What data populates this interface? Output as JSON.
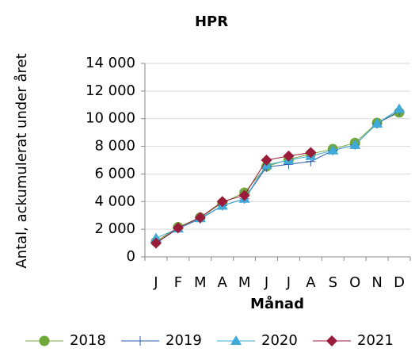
{
  "chart_data": {
    "type": "line",
    "title": "HPR",
    "xlabel": "Månad",
    "ylabel": "Antal, ackumulerat under året",
    "categories": [
      "J",
      "F",
      "M",
      "A",
      "M",
      "J",
      "J",
      "A",
      "S",
      "O",
      "N",
      "D"
    ],
    "series": [
      {
        "name": "2018",
        "color": "#70a83a",
        "marker": "circle",
        "values": [
          1100,
          2150,
          2850,
          3900,
          4650,
          6550,
          7050,
          7450,
          7800,
          8250,
          9700,
          10450
        ]
      },
      {
        "name": "2019",
        "color": "#2a5aa8",
        "marker": "plus",
        "values": [
          1000,
          2050,
          2750,
          3700,
          4200,
          6500,
          6700,
          6900,
          7700,
          8100,
          9650,
          10550
        ]
      },
      {
        "name": "2020",
        "color": "#3fa9d8",
        "marker": "triangle",
        "values": [
          1350,
          2050,
          2800,
          3700,
          4200,
          6650,
          7000,
          7300,
          7700,
          8100,
          9650,
          10700
        ]
      },
      {
        "name": "2021",
        "color": "#9b1b3b",
        "marker": "diamond",
        "values": [
          1000,
          2100,
          2850,
          4000,
          4450,
          7000,
          7300,
          7550,
          null,
          null,
          null,
          null
        ]
      }
    ],
    "ylim": [
      0,
      14000
    ],
    "yticks": [
      0,
      {
        "value": 2000,
        "label": "2 000"
      },
      {
        "value": 4000,
        "label": "4 000"
      },
      {
        "value": 6000,
        "label": "6 000"
      },
      {
        "value": 8000,
        "label": "8 000"
      },
      {
        "value": 10000,
        "label": "10 000"
      },
      {
        "value": 12000,
        "label": "12 000"
      },
      {
        "value": 14000,
        "label": "14 000"
      }
    ],
    "grid": true,
    "legend": "bottom"
  }
}
